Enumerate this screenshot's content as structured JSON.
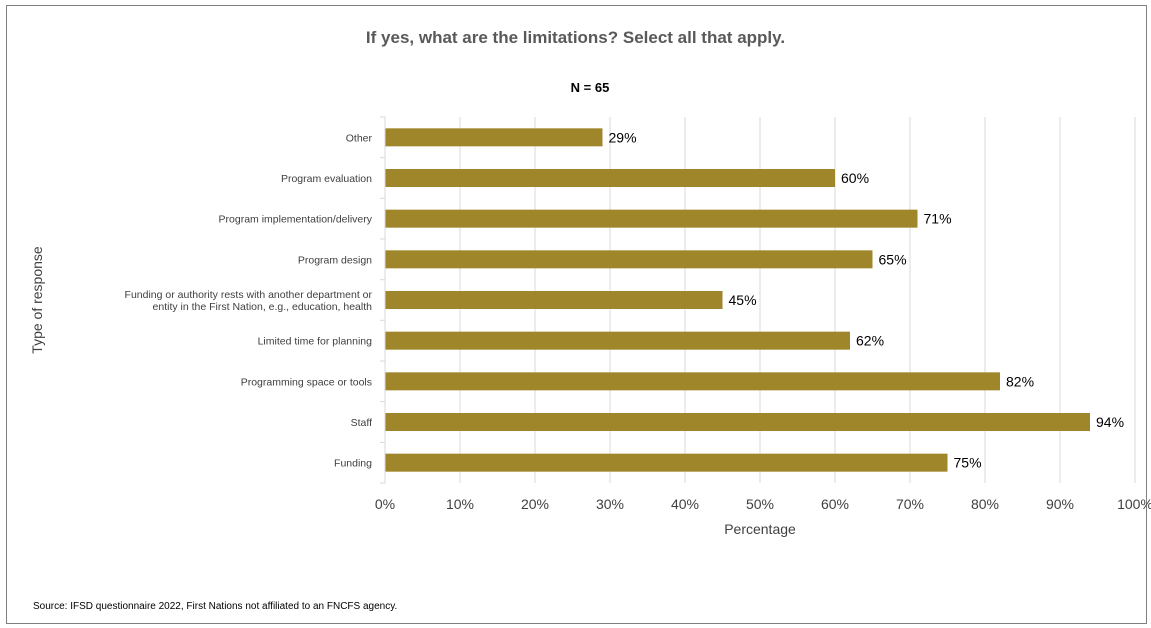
{
  "chart_data": {
    "type": "bar",
    "orientation": "horizontal",
    "title": "If yes, what are the limitations? Select all that apply.",
    "subtitle": "N = 65",
    "xlabel": "Percentage",
    "ylabel": "Type of response",
    "categories": [
      [
        "Other"
      ],
      [
        "Program evaluation"
      ],
      [
        "Program implementation/delivery"
      ],
      [
        "Program design"
      ],
      [
        "Funding or authority rests with another department or",
        "entity in the First Nation, e.g., education, health"
      ],
      [
        "Limited time for planning"
      ],
      [
        "Programming space or tools"
      ],
      [
        "Staff"
      ],
      [
        "Funding"
      ]
    ],
    "values": [
      29,
      60,
      71,
      65,
      45,
      62,
      82,
      94,
      75
    ],
    "data_labels": [
      "29%",
      "60%",
      "71%",
      "65%",
      "45%",
      "62%",
      "82%",
      "94%",
      "75%"
    ],
    "xlim": [
      0,
      100
    ],
    "x_ticks": [
      0,
      10,
      20,
      30,
      40,
      50,
      60,
      70,
      80,
      90,
      100
    ],
    "x_tick_labels": [
      "0%",
      "10%",
      "20%",
      "30%",
      "40%",
      "50%",
      "60%",
      "70%",
      "80%",
      "90%",
      "100%"
    ],
    "grid": "vertical",
    "legend": "none",
    "bar_color": "#a0862a",
    "grid_color": "#d9d9d9"
  },
  "source": "Source: IFSD questionnaire 2022, First Nations not affiliated to an FNCFS agency."
}
